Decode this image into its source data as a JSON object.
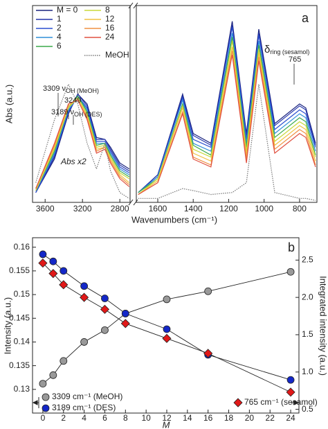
{
  "chart_data": [
    {
      "type": "line",
      "panel_label": "a",
      "y_label": "Abs (a.u.)",
      "x_label": "Wavenumbers (cm⁻¹)",
      "xlim": [
        3735,
        702
      ],
      "x_break": [
        2690,
        1721
      ],
      "ylim": [
        0,
        1
      ],
      "xticks": [
        3600,
        3200,
        2800,
        1600,
        1400,
        1200,
        1000,
        800
      ],
      "x": [
        3700,
        3500,
        3350,
        3250,
        3150,
        3050,
        2960,
        2900,
        2800,
        2700,
        1710,
        1600,
        1460,
        1400,
        1300,
        1180,
        1100,
        1030,
        940,
        800,
        765,
        710
      ],
      "series": [
        {
          "name": "M = 0",
          "color": "#1a237e",
          "style": "solid",
          "values": [
            0.05,
            0.22,
            0.45,
            0.55,
            0.5,
            0.33,
            0.32,
            0.28,
            0.2,
            0.17,
            0.05,
            0.14,
            0.55,
            0.35,
            0.3,
            0.92,
            0.35,
            0.88,
            0.4,
            0.5,
            0.48,
            0.3
          ]
        },
        {
          "name": "1",
          "color": "#2233aa",
          "style": "solid",
          "values": [
            0.05,
            0.23,
            0.46,
            0.55,
            0.49,
            0.32,
            0.32,
            0.27,
            0.19,
            0.16,
            0.05,
            0.14,
            0.54,
            0.34,
            0.29,
            0.9,
            0.34,
            0.86,
            0.39,
            0.49,
            0.47,
            0.29
          ]
        },
        {
          "name": "2",
          "color": "#2a4fd0",
          "style": "solid",
          "values": [
            0.05,
            0.24,
            0.46,
            0.54,
            0.48,
            0.31,
            0.31,
            0.26,
            0.18,
            0.15,
            0.05,
            0.13,
            0.53,
            0.32,
            0.28,
            0.89,
            0.32,
            0.85,
            0.37,
            0.47,
            0.45,
            0.28
          ]
        },
        {
          "name": "4",
          "color": "#2f8fd8",
          "style": "solid",
          "values": [
            0.06,
            0.25,
            0.47,
            0.54,
            0.47,
            0.3,
            0.3,
            0.25,
            0.17,
            0.14,
            0.05,
            0.13,
            0.52,
            0.3,
            0.26,
            0.86,
            0.3,
            0.82,
            0.35,
            0.45,
            0.43,
            0.26
          ]
        },
        {
          "name": "6",
          "color": "#3aaa4a",
          "style": "solid",
          "values": [
            0.06,
            0.26,
            0.48,
            0.54,
            0.46,
            0.29,
            0.3,
            0.24,
            0.16,
            0.13,
            0.05,
            0.12,
            0.5,
            0.29,
            0.24,
            0.84,
            0.28,
            0.8,
            0.33,
            0.43,
            0.41,
            0.24
          ]
        },
        {
          "name": "8",
          "color": "#c8d83a",
          "style": "solid",
          "values": [
            0.06,
            0.27,
            0.48,
            0.53,
            0.45,
            0.28,
            0.29,
            0.23,
            0.15,
            0.12,
            0.04,
            0.12,
            0.49,
            0.27,
            0.23,
            0.82,
            0.26,
            0.78,
            0.31,
            0.41,
            0.39,
            0.23
          ]
        },
        {
          "name": "12",
          "color": "#f0c040",
          "style": "solid",
          "values": [
            0.07,
            0.28,
            0.49,
            0.53,
            0.44,
            0.27,
            0.28,
            0.22,
            0.14,
            0.1,
            0.04,
            0.11,
            0.48,
            0.25,
            0.21,
            0.79,
            0.24,
            0.76,
            0.29,
            0.39,
            0.37,
            0.21
          ]
        },
        {
          "name": "16",
          "color": "#f09040",
          "style": "solid",
          "values": [
            0.07,
            0.29,
            0.5,
            0.52,
            0.43,
            0.26,
            0.28,
            0.21,
            0.13,
            0.09,
            0.04,
            0.1,
            0.46,
            0.23,
            0.19,
            0.77,
            0.22,
            0.74,
            0.27,
            0.37,
            0.35,
            0.19
          ]
        },
        {
          "name": "24",
          "color": "#e05040",
          "style": "solid",
          "values": [
            0.07,
            0.3,
            0.5,
            0.52,
            0.42,
            0.25,
            0.27,
            0.2,
            0.12,
            0.08,
            0.04,
            0.1,
            0.45,
            0.22,
            0.18,
            0.75,
            0.2,
            0.72,
            0.25,
            0.35,
            0.33,
            0.18
          ]
        },
        {
          "name": "MeOH",
          "color": "#777777",
          "style": "dotted",
          "values": [
            0.1,
            0.42,
            0.6,
            0.5,
            0.3,
            0.17,
            0.3,
            0.16,
            0.05,
            0.02,
            0.02,
            0.02,
            0.07,
            0.06,
            0.04,
            0.05,
            0.1,
            0.6,
            0.05,
            0.02,
            0.02,
            0.01
          ]
        }
      ],
      "annotations": [
        {
          "text": "3309 ν",
          "sub": "OH (MeOH)"
        },
        {
          "text": "3249"
        },
        {
          "text": "3189 ν",
          "sub": "OH (DES)"
        },
        {
          "text": "δ",
          "sub": "ring (sesamol)"
        },
        {
          "text": "765"
        },
        {
          "text": "Abs x2"
        }
      ]
    },
    {
      "type": "line",
      "panel_label": "b",
      "y_label": "Intensity (a.u.)",
      "y2_label": "Integrated intensity (a.u.)",
      "x_label": "M",
      "xlim": [
        -1,
        24.8
      ],
      "ylim": [
        0.125,
        0.162
      ],
      "y2lim": [
        0.45,
        2.8
      ],
      "xticks": [
        0,
        2,
        4,
        6,
        8,
        10,
        12,
        14,
        16,
        18,
        20,
        22,
        24
      ],
      "yticks": [
        0.13,
        0.135,
        0.14,
        0.145,
        0.15,
        0.155,
        0.16
      ],
      "y2ticks": [
        0.5,
        {
          "value": 1,
          "label": "1.0"
        },
        1.5,
        {
          "value": 2,
          "label": "2.0"
        },
        2.5
      ],
      "x": [
        0,
        1,
        2,
        4,
        6,
        8,
        12,
        16,
        24
      ],
      "series": [
        {
          "name": "3309 cm⁻¹ (MeOH)",
          "color": "#999999",
          "marker": "circle",
          "axis": "y",
          "values": [
            0.1312,
            0.133,
            0.136,
            0.14,
            0.1425,
            0.146,
            0.149,
            0.1507,
            0.1548
          ]
        },
        {
          "name": "3189 cm⁻¹ (DES)",
          "color": "#1428c8",
          "marker": "circle",
          "axis": "y",
          "values": [
            0.1585,
            0.157,
            0.155,
            0.1518,
            0.1492,
            0.146,
            0.1427,
            0.1373,
            0.132
          ]
        },
        {
          "name": "765 cm⁻¹ (sesamol)",
          "color": "#e01818",
          "marker": "diamond",
          "axis": "y2",
          "values": [
            2.46,
            2.32,
            2.17,
            2.0,
            1.84,
            1.65,
            1.45,
            1.25,
            0.73
          ]
        }
      ]
    }
  ]
}
